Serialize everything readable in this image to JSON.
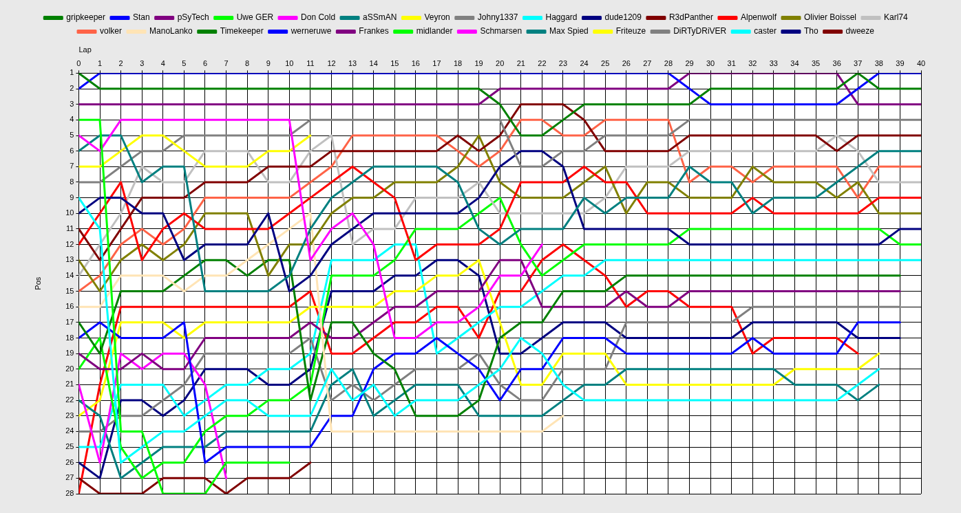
{
  "chart_data": {
    "type": "line",
    "xlabel": "Lap",
    "ylabel": "Pos",
    "x": [
      0,
      1,
      2,
      3,
      4,
      5,
      6,
      7,
      8,
      9,
      10,
      11,
      12,
      13,
      14,
      15,
      16,
      17,
      18,
      19,
      20,
      21,
      22,
      23,
      24,
      25,
      26,
      27,
      28,
      29,
      30,
      31,
      32,
      33,
      34,
      35,
      36,
      37,
      38,
      39,
      40
    ],
    "xlim": [
      0,
      40
    ],
    "xticks": [
      0,
      1,
      2,
      3,
      4,
      5,
      6,
      7,
      8,
      9,
      10,
      11,
      12,
      13,
      14,
      15,
      16,
      17,
      18,
      19,
      20,
      21,
      22,
      23,
      24,
      25,
      26,
      27,
      28,
      29,
      30,
      31,
      32,
      33,
      34,
      35,
      36,
      37,
      38,
      39,
      40
    ],
    "ylim": [
      28,
      1
    ],
    "yticks": [
      1,
      2,
      3,
      4,
      5,
      6,
      7,
      8,
      9,
      10,
      11,
      12,
      13,
      14,
      15,
      16,
      17,
      18,
      19,
      20,
      21,
      22,
      23,
      24,
      25,
      26,
      27,
      28
    ],
    "grid": true,
    "legend": "top",
    "marker": "none",
    "line_style": "solid",
    "series": [
      {
        "name": "gripkeeper",
        "color": "#008000",
        "values": [
          1,
          2,
          2,
          2,
          2,
          2,
          2,
          2,
          2,
          2,
          2,
          2,
          2,
          2,
          2,
          2,
          2,
          2,
          2,
          2,
          3,
          5,
          5,
          4,
          3,
          3,
          3,
          3,
          3,
          3,
          2,
          2,
          2,
          2,
          2,
          2,
          2,
          1,
          2,
          2,
          2
        ]
      },
      {
        "name": "Stan",
        "color": "#0000ff",
        "values": [
          2,
          1,
          1,
          1,
          1,
          1,
          1,
          1,
          1,
          1,
          1,
          1,
          1,
          1,
          1,
          1,
          1,
          1,
          1,
          1,
          1,
          1,
          1,
          1,
          1,
          1,
          1,
          1,
          1,
          2,
          3,
          3,
          3,
          3,
          3,
          3,
          3,
          2,
          1,
          1,
          1
        ]
      },
      {
        "name": "pSyTech",
        "color": "#800080",
        "values": [
          3,
          3,
          3,
          3,
          3,
          3,
          3,
          3,
          3,
          3,
          3,
          3,
          3,
          3,
          3,
          3,
          3,
          3,
          3,
          3,
          2,
          2,
          2,
          2,
          2,
          2,
          2,
          2,
          2,
          1,
          1,
          1,
          1,
          1,
          1,
          1,
          1,
          3,
          3,
          3,
          3
        ]
      },
      {
        "name": "Uwe GER",
        "color": "#00ff00",
        "values": [
          4,
          4,
          24,
          24,
          28,
          28,
          28,
          26,
          26,
          26,
          26,
          null,
          null,
          null,
          null,
          null,
          null,
          null,
          null,
          null,
          null,
          null,
          null,
          null,
          null,
          null,
          null,
          null,
          null,
          null,
          null,
          null,
          null,
          null,
          null,
          null,
          null,
          null,
          null,
          null,
          null
        ]
      },
      {
        "name": "Don Cold",
        "color": "#ff00ff",
        "values": [
          5,
          6,
          4,
          4,
          4,
          4,
          4,
          4,
          4,
          4,
          4,
          13,
          11,
          10,
          12,
          18,
          18,
          17,
          17,
          16,
          14,
          14,
          12,
          null,
          null,
          null,
          null,
          null,
          null,
          null,
          null,
          null,
          null,
          null,
          null,
          null,
          null,
          null,
          null,
          null,
          null
        ]
      },
      {
        "name": "aSSmAN",
        "color": "#008080",
        "values": [
          6,
          5,
          5,
          8,
          7,
          7,
          15,
          15,
          15,
          15,
          14,
          11,
          9,
          8,
          7,
          7,
          7,
          7,
          8,
          11,
          12,
          11,
          11,
          11,
          9,
          10,
          9,
          9,
          9,
          7,
          8,
          8,
          10,
          9,
          9,
          9,
          8,
          7,
          6,
          6,
          6
        ]
      },
      {
        "name": "Veyron",
        "color": "#ffff00",
        "values": [
          7,
          7,
          6,
          5,
          5,
          6,
          7,
          7,
          7,
          6,
          6,
          5,
          null,
          null,
          null,
          null,
          null,
          null,
          null,
          null,
          null,
          null,
          null,
          null,
          null,
          null,
          null,
          null,
          null,
          null,
          null,
          null,
          null,
          null,
          null,
          null,
          null,
          null,
          null,
          null,
          null
        ]
      },
      {
        "name": "Johny1337",
        "color": "#808080",
        "values": [
          8,
          8,
          7,
          6,
          6,
          5,
          5,
          5,
          5,
          5,
          5,
          4,
          4,
          4,
          4,
          4,
          4,
          4,
          4,
          4,
          4,
          7,
          7,
          6,
          6,
          5,
          5,
          5,
          5,
          4,
          4,
          4,
          4,
          4,
          4,
          4,
          4,
          4,
          4,
          4,
          4
        ]
      },
      {
        "name": "Haggard",
        "color": "#00ffff",
        "values": [
          9,
          11,
          26,
          25,
          24,
          24,
          23,
          22,
          22,
          23,
          23,
          23,
          20,
          22,
          21,
          23,
          22,
          22,
          22,
          21,
          20,
          18,
          19,
          21,
          22,
          22,
          22,
          22,
          22,
          22,
          22,
          22,
          22,
          22,
          22,
          22,
          22,
          21,
          20,
          null,
          null
        ]
      },
      {
        "name": "dude1209",
        "color": "#000080",
        "values": [
          10,
          9,
          9,
          10,
          10,
          13,
          12,
          12,
          12,
          10,
          15,
          14,
          12,
          11,
          10,
          10,
          10,
          10,
          10,
          9,
          7,
          6,
          6,
          7,
          11,
          11,
          11,
          11,
          11,
          12,
          12,
          12,
          12,
          12,
          12,
          12,
          12,
          12,
          12,
          11,
          11
        ]
      },
      {
        "name": "R3dPanther",
        "color": "#800000",
        "values": [
          11,
          13,
          11,
          9,
          9,
          9,
          8,
          8,
          8,
          7,
          7,
          7,
          6,
          6,
          6,
          6,
          6,
          6,
          5,
          6,
          5,
          3,
          3,
          3,
          4,
          6,
          6,
          6,
          6,
          5,
          5,
          5,
          5,
          5,
          5,
          5,
          6,
          5,
          5,
          5,
          5
        ]
      },
      {
        "name": "Alpenwolf",
        "color": "#ff0000",
        "values": [
          12,
          10,
          8,
          13,
          11,
          10,
          11,
          11,
          11,
          11,
          10,
          9,
          8,
          7,
          8,
          9,
          13,
          12,
          12,
          12,
          11,
          8,
          8,
          8,
          7,
          8,
          8,
          10,
          10,
          10,
          10,
          10,
          9,
          10,
          10,
          10,
          10,
          10,
          9,
          9,
          9
        ]
      },
      {
        "name": "Olivier Boissel",
        "color": "#808000",
        "values": [
          13,
          15,
          13,
          12,
          13,
          12,
          10,
          10,
          10,
          14,
          12,
          12,
          10,
          9,
          9,
          8,
          8,
          8,
          7,
          5,
          8,
          9,
          9,
          9,
          8,
          7,
          10,
          8,
          8,
          9,
          9,
          9,
          7,
          8,
          8,
          8,
          9,
          8,
          10,
          10,
          10
        ]
      },
      {
        "name": "Karl74",
        "color": "#c0c0c0",
        "values": [
          14,
          12,
          10,
          7,
          8,
          8,
          6,
          6,
          6,
          8,
          8,
          6,
          5,
          12,
          11,
          11,
          9,
          9,
          9,
          8,
          10,
          10,
          10,
          10,
          10,
          9,
          7,
          7,
          7,
          6,
          6,
          6,
          6,
          6,
          6,
          6,
          5,
          6,
          8,
          8,
          8
        ]
      },
      {
        "name": "volker",
        "color": "#ff6347",
        "values": [
          15,
          14,
          12,
          11,
          12,
          11,
          9,
          9,
          9,
          9,
          9,
          8,
          7,
          5,
          5,
          5,
          5,
          5,
          6,
          7,
          6,
          4,
          4,
          5,
          5,
          4,
          4,
          4,
          4,
          8,
          7,
          7,
          8,
          7,
          7,
          7,
          7,
          9,
          7,
          7,
          7
        ]
      },
      {
        "name": "ManoLanko",
        "color": "#ffe4b5",
        "values": [
          16,
          16,
          14,
          14,
          14,
          15,
          14,
          14,
          13,
          12,
          11,
          10,
          24,
          24,
          24,
          24,
          24,
          24,
          24,
          24,
          24,
          24,
          24,
          23,
          null,
          null,
          null,
          null,
          null,
          null,
          null,
          null,
          null,
          null,
          null,
          null,
          null,
          null,
          null,
          null,
          null
        ]
      },
      {
        "name": "Timekeeper",
        "color": "#008000",
        "values": [
          17,
          19,
          15,
          15,
          15,
          14,
          13,
          13,
          14,
          13,
          13,
          22,
          17,
          17,
          19,
          20,
          23,
          23,
          23,
          22,
          18,
          17,
          17,
          15,
          15,
          15,
          14,
          14,
          14,
          14,
          14,
          14,
          14,
          14,
          14,
          14,
          14,
          14,
          14,
          14,
          null
        ]
      },
      {
        "name": "werneruwe",
        "color": "#0000ff",
        "values": [
          18,
          17,
          18,
          18,
          18,
          17,
          26,
          25,
          25,
          25,
          25,
          25,
          23,
          23,
          20,
          19,
          19,
          18,
          19,
          20,
          22,
          20,
          20,
          18,
          18,
          18,
          19,
          19,
          19,
          19,
          19,
          19,
          18,
          19,
          19,
          19,
          19,
          17,
          17,
          17,
          null
        ]
      },
      {
        "name": "Frankes",
        "color": "#800080",
        "values": [
          19,
          20,
          20,
          19,
          20,
          20,
          18,
          18,
          18,
          18,
          18,
          17,
          18,
          18,
          17,
          16,
          16,
          15,
          15,
          15,
          13,
          13,
          16,
          16,
          16,
          16,
          15,
          16,
          16,
          15,
          15,
          15,
          15,
          15,
          15,
          15,
          15,
          15,
          15,
          15,
          null
        ]
      },
      {
        "name": "midlander",
        "color": "#00ff00",
        "values": [
          20,
          18,
          25,
          27,
          26,
          26,
          24,
          23,
          23,
          22,
          22,
          21,
          14,
          14,
          14,
          13,
          11,
          11,
          11,
          10,
          9,
          12,
          14,
          13,
          12,
          12,
          12,
          12,
          12,
          11,
          11,
          11,
          11,
          11,
          11,
          11,
          11,
          11,
          11,
          12,
          12
        ]
      },
      {
        "name": "Schmarsen",
        "color": "#ff00ff",
        "values": [
          21,
          26,
          19,
          20,
          19,
          19,
          21,
          27,
          null,
          null,
          null,
          null,
          null,
          null,
          null,
          null,
          null,
          null,
          null,
          null,
          null,
          null,
          null,
          null,
          null,
          null,
          null,
          null,
          null,
          null,
          null,
          null,
          null,
          null,
          null,
          null,
          null,
          null,
          null,
          null,
          null
        ]
      },
      {
        "name": "Max Spied",
        "color": "#008080",
        "values": [
          22,
          23,
          27,
          26,
          25,
          25,
          25,
          24,
          24,
          24,
          24,
          24,
          21,
          20,
          23,
          22,
          21,
          21,
          21,
          23,
          23,
          23,
          23,
          22,
          21,
          21,
          20,
          20,
          20,
          20,
          20,
          20,
          20,
          20,
          21,
          21,
          21,
          22,
          21,
          null,
          null
        ]
      },
      {
        "name": "Friteuze",
        "color": "#ffff00",
        "values": [
          23,
          22,
          17,
          17,
          17,
          18,
          17,
          17,
          17,
          17,
          17,
          16,
          16,
          16,
          16,
          15,
          15,
          14,
          14,
          13,
          17,
          21,
          21,
          19,
          19,
          19,
          21,
          21,
          21,
          21,
          21,
          21,
          21,
          21,
          20,
          20,
          20,
          20,
          19,
          null,
          null
        ]
      },
      {
        "name": "DiRTyDRiVER",
        "color": "#808080",
        "values": [
          24,
          24,
          23,
          23,
          22,
          21,
          19,
          19,
          19,
          19,
          19,
          18,
          22,
          21,
          22,
          21,
          20,
          20,
          20,
          19,
          21,
          22,
          22,
          20,
          20,
          20,
          17,
          17,
          17,
          17,
          17,
          17,
          16,
          16,
          16,
          16,
          16,
          16,
          16,
          16,
          null
        ]
      },
      {
        "name": "caster",
        "color": "#00ffff",
        "values": [
          25,
          25,
          21,
          21,
          21,
          23,
          22,
          21,
          21,
          20,
          20,
          19,
          13,
          13,
          13,
          12,
          12,
          19,
          18,
          17,
          16,
          16,
          15,
          14,
          14,
          13,
          13,
          13,
          13,
          13,
          13,
          13,
          13,
          13,
          13,
          13,
          13,
          13,
          13,
          13,
          13
        ]
      },
      {
        "name": "Tho",
        "color": "#000080",
        "values": [
          26,
          27,
          22,
          22,
          23,
          22,
          20,
          20,
          20,
          21,
          21,
          20,
          15,
          15,
          15,
          14,
          14,
          13,
          13,
          14,
          19,
          19,
          18,
          17,
          17,
          17,
          18,
          18,
          18,
          18,
          18,
          18,
          17,
          17,
          17,
          17,
          17,
          18,
          18,
          18,
          null
        ]
      },
      {
        "name": "dweeze",
        "color": "#800000",
        "values": [
          27,
          28,
          28,
          28,
          27,
          27,
          27,
          28,
          27,
          27,
          27,
          26,
          null,
          null,
          null,
          null,
          null,
          null,
          null,
          null,
          null,
          null,
          null,
          null,
          null,
          null,
          null,
          null,
          null,
          null,
          null,
          null,
          null,
          null,
          null,
          null,
          null,
          null,
          null,
          null,
          null
        ]
      },
      {
        "color": "#ff0000",
        "values": [
          28,
          21,
          16,
          16,
          16,
          16,
          16,
          16,
          16,
          16,
          16,
          15,
          19,
          19,
          18,
          17,
          17,
          16,
          16,
          18,
          15,
          15,
          13,
          12,
          13,
          14,
          16,
          15,
          15,
          16,
          16,
          16,
          19,
          18,
          18,
          18,
          18,
          19,
          null,
          null,
          null
        ]
      }
    ]
  }
}
